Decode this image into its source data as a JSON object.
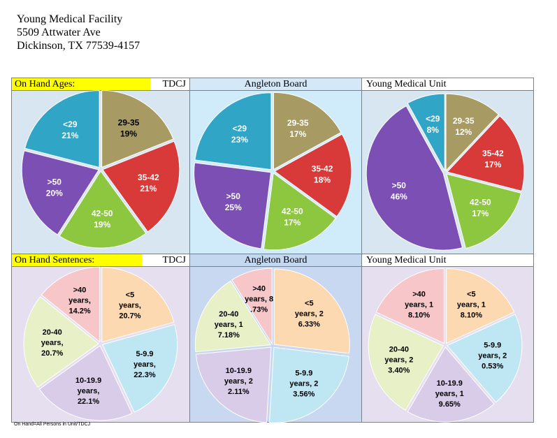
{
  "address": {
    "name": "Young Medical Facility",
    "street": "5509 Attwater Ave",
    "city": "Dickinson, TX 77539-4157"
  },
  "row1": {
    "label": "On Hand Ages:",
    "tdcj": "TDCJ",
    "angleton": "Angleton Board",
    "young": "Young Medical Unit"
  },
  "row2": {
    "label": "On Hand Sentences:",
    "tdcj": "TDCJ",
    "angleton": "Angleton Board",
    "young": "Young Medical Unit"
  },
  "footnote": "On Hand=All Persons in Unit/TDCJ",
  "colors": {
    "teal": "#31a5c6",
    "olive": "#a89a63",
    "red": "#d83a3a",
    "green": "#8dc63f",
    "purple": "#7b4fb4",
    "peach": "#fcd9b0",
    "lightblue": "#bfe6f3",
    "lavender": "#d9cce8",
    "lightgreen": "#e8f0c8",
    "pink": "#f6c6c8",
    "bg_lightblue": "#d4e8f8",
    "bg_lavender": "#e6dff0",
    "bg_blue": "#c4d8f0"
  },
  "chart_data": [
    {
      "type": "pie",
      "title": "On Hand Ages: TDCJ",
      "categories": [
        "29-35",
        "35-42",
        "42-50",
        ">50",
        "<29"
      ],
      "values": [
        19,
        21,
        19,
        20,
        21
      ],
      "labels": [
        [
          "29-35",
          "19%"
        ],
        [
          "35-42",
          "21%"
        ],
        [
          "42-50",
          "19%"
        ],
        [
          ">50",
          "20%"
        ],
        [
          "<29",
          "21%"
        ]
      ],
      "label_color": [
        "#000000",
        "#ffffff",
        "#ffffff",
        "#ffffff",
        "#ffffff"
      ]
    },
    {
      "type": "pie",
      "title": "On Hand Ages: Angleton Board",
      "categories": [
        "29-35",
        "35-42",
        "42-50",
        ">50",
        "<29"
      ],
      "values": [
        17,
        18,
        17,
        25,
        23
      ],
      "labels": [
        [
          "29-35",
          "17%"
        ],
        [
          "35-42",
          "18%"
        ],
        [
          "42-50",
          "17%"
        ],
        [
          ">50",
          "25%"
        ],
        [
          "<29",
          "23%"
        ]
      ],
      "label_color": [
        "#ffffff",
        "#ffffff",
        "#ffffff",
        "#ffffff",
        "#ffffff"
      ]
    },
    {
      "type": "pie",
      "title": "On Hand Ages: Young Medical Unit",
      "categories": [
        "29-35",
        "35-42",
        "42-50",
        ">50",
        "<29"
      ],
      "values": [
        12,
        17,
        17,
        46,
        8
      ],
      "labels": [
        [
          "29-35",
          "12%"
        ],
        [
          "35-42",
          "17%"
        ],
        [
          "42-50",
          "17%"
        ],
        [
          ">50",
          "46%"
        ],
        [
          "<29",
          "8%"
        ]
      ],
      "label_color": [
        "#ffffff",
        "#ffffff",
        "#ffffff",
        "#ffffff",
        "#ffffff"
      ]
    },
    {
      "type": "pie",
      "title": "On Hand Sentences: TDCJ",
      "categories": [
        "<5",
        "5-9.9",
        "10-19.9",
        "20-40",
        ">40"
      ],
      "values": [
        20.7,
        22.3,
        22.1,
        20.7,
        14.2
      ],
      "labels": [
        [
          "<5",
          "years,",
          "20.7%"
        ],
        [
          "5-9.9",
          "years,",
          "22.3%"
        ],
        [
          "10-19.9",
          "years,",
          "22.1%"
        ],
        [
          "20-40",
          "years,",
          "20.7%"
        ],
        [
          ">40",
          "years,",
          "14.2%"
        ]
      ]
    },
    {
      "type": "pie",
      "title": "On Hand Sentences: Angleton Board",
      "categories": [
        "<5",
        "5-9.9",
        "10-19.9",
        "20-40",
        ">40"
      ],
      "values": [
        26.33,
        23.56,
        22.11,
        17.18,
        8.73
      ],
      "labels": [
        [
          "<5",
          "years, 2",
          "6.33%"
        ],
        [
          "5-9.9",
          "years, 2",
          "3.56%"
        ],
        [
          "10-19.9",
          "years, 2",
          "2.11%"
        ],
        [
          "20-40",
          "years, 1",
          "7.18%"
        ],
        [
          ">40",
          "years, 8",
          ".73%"
        ]
      ]
    },
    {
      "type": "pie",
      "title": "On Hand Sentences: Young Medical Unit",
      "categories": [
        "<5",
        "5-9.9",
        "10-19.9",
        "20-40",
        ">40"
      ],
      "values": [
        18.1,
        20.53,
        19.65,
        23.4,
        18.1
      ],
      "labels": [
        [
          "<5",
          "years, 1",
          "8.10%"
        ],
        [
          "5-9.9",
          "years, 2",
          "0.53%"
        ],
        [
          "10-19.9",
          "years, 1",
          "9.65%"
        ],
        [
          "20-40",
          "years, 2",
          "3.40%"
        ],
        [
          ">40",
          "years, 1",
          "8.10%"
        ]
      ]
    }
  ]
}
